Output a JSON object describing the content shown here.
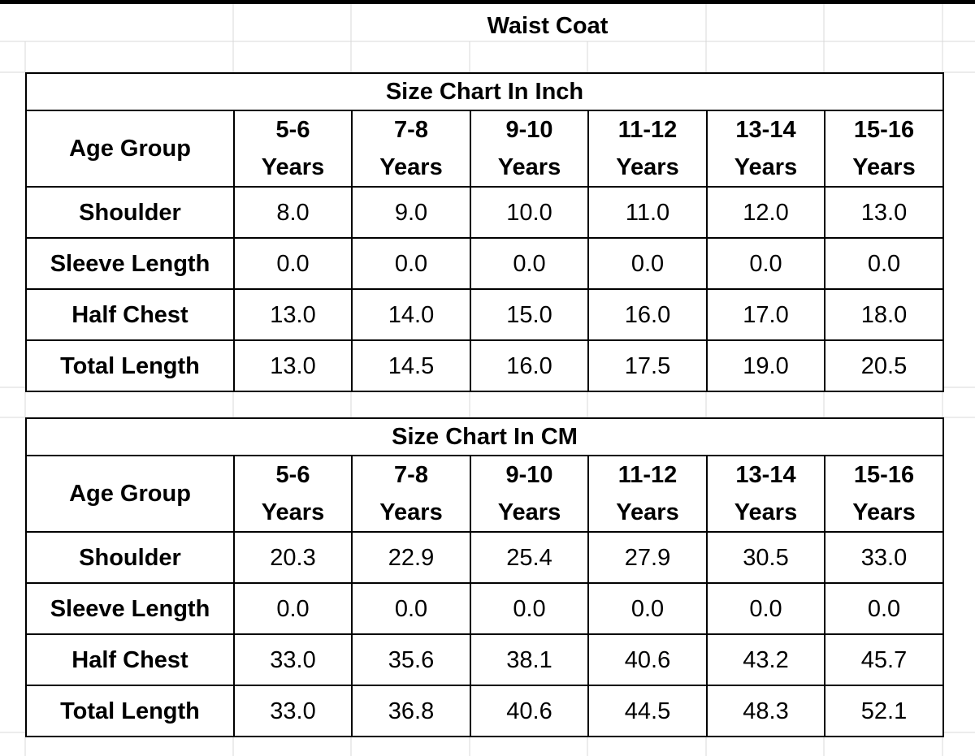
{
  "title": "Waist Coat",
  "tables": [
    {
      "caption": "Size Chart In Inch",
      "row_header": "Age Group",
      "columns": [
        {
          "range": "5-6",
          "unit": "Years"
        },
        {
          "range": "7-8",
          "unit": "Years"
        },
        {
          "range": "9-10",
          "unit": "Years"
        },
        {
          "range": "11-12",
          "unit": "Years"
        },
        {
          "range": "13-14",
          "unit": "Years"
        },
        {
          "range": "15-16",
          "unit": "Years"
        }
      ],
      "rows": [
        {
          "label": "Shoulder",
          "values": [
            "8.0",
            "9.0",
            "10.0",
            "11.0",
            "12.0",
            "13.0"
          ]
        },
        {
          "label": "Sleeve Length",
          "values": [
            "0.0",
            "0.0",
            "0.0",
            "0.0",
            "0.0",
            "0.0"
          ]
        },
        {
          "label": "Half Chest",
          "values": [
            "13.0",
            "14.0",
            "15.0",
            "16.0",
            "17.0",
            "18.0"
          ]
        },
        {
          "label": "Total Length",
          "values": [
            "13.0",
            "14.5",
            "16.0",
            "17.5",
            "19.0",
            "20.5"
          ]
        }
      ]
    },
    {
      "caption": "Size Chart In CM",
      "row_header": "Age Group",
      "columns": [
        {
          "range": "5-6",
          "unit": "Years"
        },
        {
          "range": "7-8",
          "unit": "Years"
        },
        {
          "range": "9-10",
          "unit": "Years"
        },
        {
          "range": "11-12",
          "unit": "Years"
        },
        {
          "range": "13-14",
          "unit": "Years"
        },
        {
          "range": "15-16",
          "unit": "Years"
        }
      ],
      "rows": [
        {
          "label": "Shoulder",
          "values": [
            "20.3",
            "22.9",
            "25.4",
            "27.9",
            "30.5",
            "33.0"
          ]
        },
        {
          "label": "Sleeve Length",
          "values": [
            "0.0",
            "0.0",
            "0.0",
            "0.0",
            "0.0",
            "0.0"
          ]
        },
        {
          "label": "Half Chest",
          "values": [
            "33.0",
            "35.6",
            "38.1",
            "40.6",
            "43.2",
            "45.7"
          ]
        },
        {
          "label": "Total Length",
          "values": [
            "33.0",
            "36.8",
            "40.6",
            "44.5",
            "48.3",
            "52.1"
          ]
        }
      ]
    }
  ]
}
